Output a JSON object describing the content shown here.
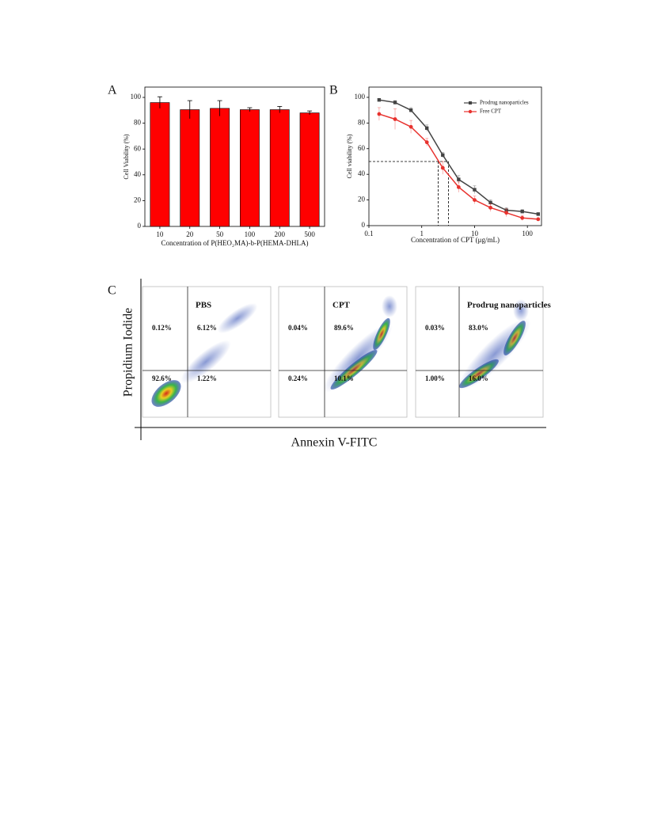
{
  "chart_data": [
    {
      "type": "bar",
      "label": "A",
      "categories": [
        "10",
        "20",
        "50",
        "100",
        "200",
        "500"
      ],
      "values": [
        96,
        90.5,
        91.5,
        90.5,
        90.5,
        88
      ],
      "errors": [
        4.5,
        7,
        6,
        1.5,
        2.5,
        1.5
      ],
      "color": "#ff0000",
      "xlabel": "Concentration of P(HEO₂MA)-b-P(HEMA-DHLA)",
      "ylabel": "Cell Viability (%)",
      "ylim": [
        0,
        108
      ],
      "yticks": [
        0,
        20,
        40,
        60,
        80,
        100
      ]
    },
    {
      "type": "line",
      "label": "B",
      "xscale": "log",
      "x": [
        0.156,
        0.3125,
        0.625,
        1.25,
        2.5,
        5,
        10,
        20,
        40,
        80,
        160
      ],
      "series": [
        {
          "name": "Prodrug nanoparticles",
          "color": "#444444",
          "values": [
            98,
            96,
            90,
            76,
            55,
            36,
            28,
            18,
            12,
            11,
            9
          ],
          "errors": [
            1,
            1.5,
            2,
            2.5,
            2,
            3,
            3,
            2,
            2,
            1.5,
            1
          ]
        },
        {
          "name": "Free CPT",
          "color": "#e8322e",
          "values": [
            87,
            83,
            77,
            65,
            45,
            30,
            20,
            14,
            10,
            6,
            5
          ],
          "errors": [
            5,
            8,
            5,
            3,
            5,
            4,
            3,
            3,
            3,
            2,
            1
          ]
        }
      ],
      "hline": 50,
      "vlines": [
        2.05,
        3.2
      ],
      "xlabel": "Concentration of CPT (μg/mL)",
      "ylabel": "Cell viability (%)",
      "xlim": [
        0.1,
        185
      ],
      "xticks": [
        0.1,
        1,
        10,
        100
      ],
      "ylim": [
        0,
        108
      ],
      "yticks": [
        0,
        20,
        40,
        60,
        80,
        100
      ],
      "legend": "upper right"
    }
  ],
  "flow_cytometry": {
    "label": "C",
    "xlabel": "Annexin V-FITC",
    "ylabel": "Propidium Iodide",
    "panels": [
      {
        "title": "PBS",
        "quadrants": [
          "0.12%",
          "6.12%",
          "92.6%",
          "1.22%"
        ]
      },
      {
        "title": "CPT",
        "quadrants": [
          "0.04%",
          "89.6%",
          "0.24%",
          "10.1%"
        ]
      },
      {
        "title": "Prodrug nanoparticles",
        "quadrants": [
          "0.03%",
          "83.0%",
          "1.00%",
          "16.0%"
        ]
      }
    ]
  }
}
